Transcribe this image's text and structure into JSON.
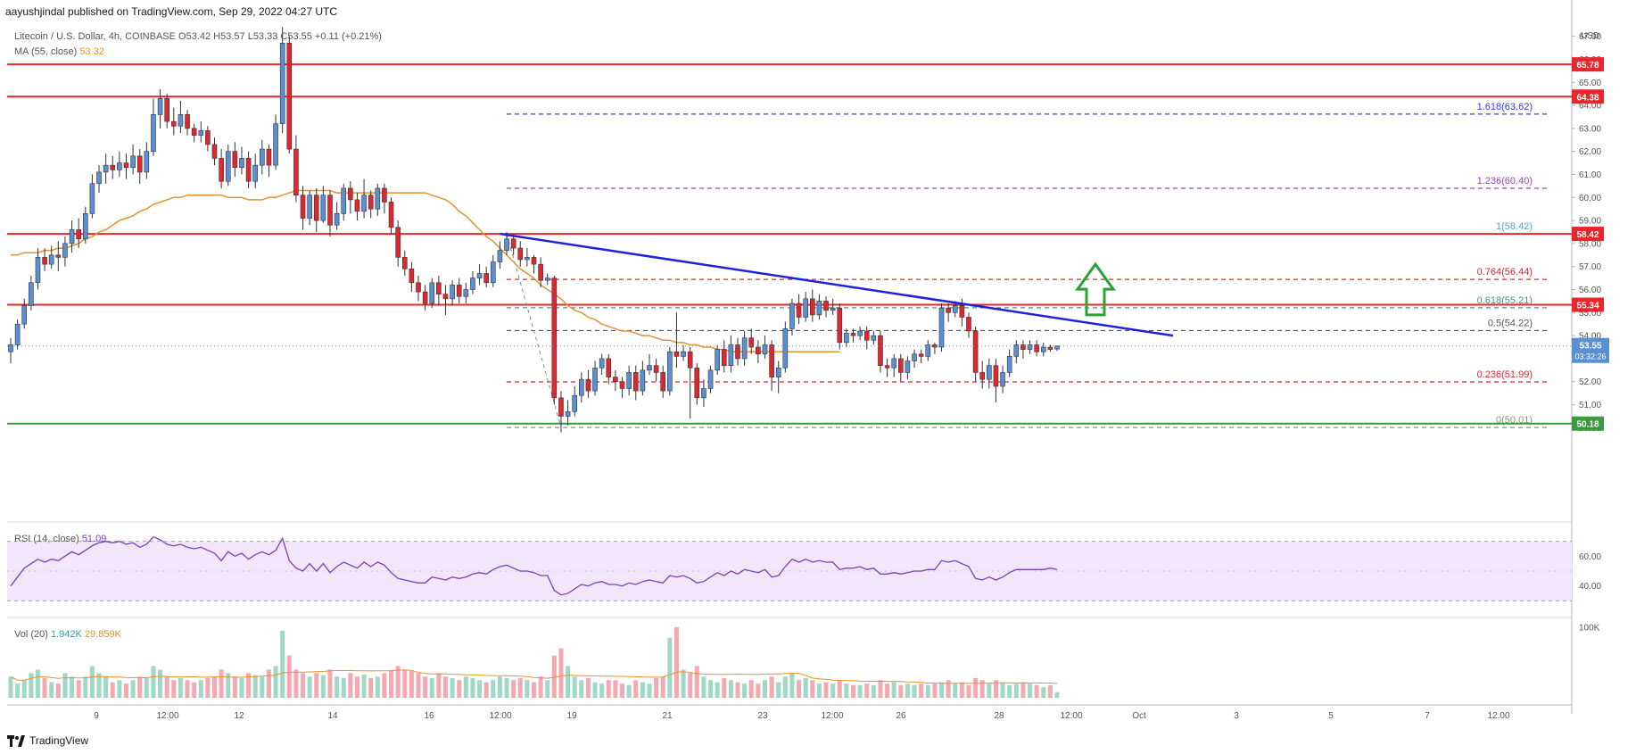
{
  "header": {
    "publisher": "aayushjindal published on TradingView.com, Sep 29, 2022 04:27 UTC",
    "symbol": "Litecoin / U.S. Dollar, 4h, COINBASE",
    "ohlc": "O53.42 H53.57 L53.33 C53.55 +0.11 (+0.21%)",
    "ma_label": "MA (55, close)",
    "ma_value": "53.32"
  },
  "rsi": {
    "label": "RSI (14, close)",
    "value": "51.09"
  },
  "vol": {
    "label": "Vol (20)",
    "value1": "1.942K",
    "value2": "29.859K"
  },
  "footer": {
    "brand": "TradingView"
  },
  "colors": {
    "up": "#5b8fd4",
    "down": "#e0262f",
    "ma": "#e8912d",
    "trendline": "#1f22d9",
    "hline": "#e8262c",
    "support": "#3a9a3e",
    "arrow": "#2aa332",
    "rsi_line": "#7e3fb8",
    "rsi_fill": "#f1e6fa"
  },
  "chart_data": {
    "type": "candlestick",
    "title": "Litecoin / U.S. Dollar, 4h, COINBASE",
    "y_axis_label": "USD",
    "ylim": [
      49.2,
      67.8
    ],
    "price_ticks": [
      "67.00",
      "66.00",
      "65.00",
      "64.00",
      "63.00",
      "62.00",
      "61.00",
      "60.00",
      "59.00",
      "58.00",
      "57.00",
      "56.00",
      "55.00",
      "54.00",
      "53.00",
      "52.00",
      "51.00",
      "50.00"
    ],
    "x_ticks": [
      "9",
      "12:00",
      "12",
      "14",
      "16",
      "12:00",
      "19",
      "21",
      "23",
      "12:00",
      "26",
      "28",
      "12:00",
      "Oct",
      "3",
      "5",
      "7",
      "12:00"
    ],
    "last_price": "53.55",
    "countdown": "03:32:26",
    "horizontal_levels": [
      {
        "value": 65.78,
        "label": "65.78"
      },
      {
        "value": 64.38,
        "label": "64.38"
      },
      {
        "value": 58.42,
        "label": "58.42"
      },
      {
        "value": 55.34,
        "label": "55.34"
      },
      {
        "value": 50.18,
        "label": "50.18"
      }
    ],
    "fibonacci": [
      {
        "value": 63.62,
        "label": "1.618(63.62)"
      },
      {
        "value": 60.4,
        "label": "1.236(60.40)"
      },
      {
        "value": 58.42,
        "label": "1(58.42)"
      },
      {
        "value": 56.44,
        "label": "0.764(56.44)"
      },
      {
        "value": 55.21,
        "label": "0.618(55.21)"
      },
      {
        "value": 54.22,
        "label": "0.5(54.22)"
      },
      {
        "value": 51.99,
        "label": "0.236(51.99)"
      },
      {
        "value": 50.01,
        "label": "0(50.01)"
      }
    ],
    "trendline": {
      "from": 58.42,
      "to": 54.0
    },
    "moving_average_55": [
      57.5,
      57.5,
      57.6,
      57.6,
      57.6,
      57.7,
      57.7,
      57.8,
      57.8,
      57.9,
      58.0,
      58.2,
      58.3,
      58.5,
      58.6,
      58.8,
      59.0,
      59.1,
      59.2,
      59.4,
      59.5,
      59.7,
      59.8,
      59.9,
      60.0,
      60.0,
      60.1,
      60.1,
      60.1,
      60.1,
      60.1,
      60.1,
      60.0,
      60.0,
      60.0,
      59.9,
      59.9,
      59.9,
      60.0,
      60.0,
      60.1,
      60.2,
      60.3,
      60.3,
      60.3,
      60.3,
      60.3,
      60.3,
      60.2,
      60.2,
      60.2,
      60.2,
      60.2,
      60.2,
      60.2,
      60.2,
      60.2,
      60.2,
      60.2,
      60.2,
      60.2,
      60.2,
      60.1,
      60.0,
      59.9,
      59.7,
      59.4,
      59.2,
      58.9,
      58.6,
      58.3,
      58.1,
      57.8,
      57.5,
      57.2,
      56.9,
      56.7,
      56.5,
      56.2,
      56.0,
      55.8,
      55.6,
      55.3,
      55.1,
      55.0,
      54.8,
      54.7,
      54.5,
      54.4,
      54.3,
      54.2,
      54.2,
      54.1,
      54.0,
      54.0,
      53.9,
      53.8,
      53.8,
      53.7,
      53.7,
      53.6,
      53.6,
      53.5,
      53.5,
      53.4,
      53.4,
      53.3,
      53.3,
      53.3,
      53.3,
      53.3,
      53.3,
      53.3,
      53.3,
      53.3,
      53.3,
      53.3,
      53.3,
      53.3,
      53.3,
      53.3,
      53.3,
      53.3
    ],
    "candles": [
      [
        53.3,
        53.6,
        52.8,
        53.9
      ],
      [
        53.6,
        54.5,
        53.4,
        54.7
      ],
      [
        54.5,
        55.3,
        54.3,
        55.6
      ],
      [
        55.3,
        56.3,
        55.1,
        56.6
      ],
      [
        56.3,
        57.4,
        56.0,
        57.8
      ],
      [
        57.4,
        57.1,
        56.8,
        57.8
      ],
      [
        57.1,
        57.5,
        56.9,
        57.9
      ],
      [
        57.5,
        57.4,
        56.8,
        58.1
      ],
      [
        57.4,
        58.0,
        57.0,
        58.3
      ],
      [
        58.0,
        58.6,
        57.6,
        59.0
      ],
      [
        58.6,
        58.2,
        57.8,
        59.1
      ],
      [
        58.2,
        59.3,
        58.0,
        59.6
      ],
      [
        59.3,
        60.6,
        59.1,
        61.0
      ],
      [
        60.6,
        61.1,
        60.2,
        61.4
      ],
      [
        61.1,
        61.4,
        60.6,
        61.9
      ],
      [
        61.4,
        61.2,
        60.8,
        61.8
      ],
      [
        61.2,
        61.5,
        60.9,
        62.0
      ],
      [
        61.5,
        61.3,
        60.8,
        61.9
      ],
      [
        61.3,
        61.8,
        61.0,
        62.3
      ],
      [
        61.8,
        61.1,
        60.6,
        62.1
      ],
      [
        61.1,
        62.0,
        60.8,
        62.4
      ],
      [
        62.0,
        63.6,
        61.8,
        64.3
      ],
      [
        63.6,
        64.3,
        63.0,
        64.7
      ],
      [
        64.3,
        63.3,
        63.0,
        64.5
      ],
      [
        63.3,
        63.1,
        62.7,
        63.9
      ],
      [
        63.1,
        63.6,
        62.8,
        64.2
      ],
      [
        63.6,
        63.0,
        62.7,
        63.8
      ],
      [
        63.0,
        62.7,
        62.4,
        63.2
      ],
      [
        62.7,
        62.9,
        62.4,
        63.3
      ],
      [
        62.9,
        62.3,
        62.0,
        63.1
      ],
      [
        62.3,
        61.7,
        61.4,
        62.6
      ],
      [
        61.7,
        60.7,
        60.4,
        62.1
      ],
      [
        60.7,
        62.0,
        60.5,
        62.3
      ],
      [
        62.0,
        61.3,
        60.9,
        62.4
      ],
      [
        61.3,
        61.7,
        61.0,
        62.2
      ],
      [
        61.7,
        60.7,
        60.4,
        62.0
      ],
      [
        60.7,
        61.4,
        60.4,
        61.9
      ],
      [
        61.4,
        62.1,
        61.0,
        62.5
      ],
      [
        62.1,
        61.4,
        60.9,
        62.3
      ],
      [
        61.4,
        63.2,
        61.2,
        63.6
      ],
      [
        63.2,
        66.7,
        62.8,
        67.4
      ],
      [
        66.7,
        62.1,
        61.9,
        67.0
      ],
      [
        62.1,
        60.1,
        59.8,
        62.7
      ],
      [
        60.1,
        59.1,
        58.6,
        60.5
      ],
      [
        59.1,
        60.1,
        58.8,
        60.3
      ],
      [
        60.1,
        59.0,
        58.5,
        60.4
      ],
      [
        59.0,
        60.1,
        58.9,
        60.5
      ],
      [
        60.1,
        58.8,
        58.3,
        60.3
      ],
      [
        58.8,
        59.3,
        58.6,
        59.8
      ],
      [
        59.3,
        60.4,
        59.0,
        60.6
      ],
      [
        60.4,
        59.9,
        59.3,
        60.7
      ],
      [
        59.9,
        59.4,
        59.0,
        60.2
      ],
      [
        59.4,
        60.1,
        59.1,
        60.8
      ],
      [
        60.1,
        59.5,
        59.1,
        60.3
      ],
      [
        59.5,
        60.4,
        59.2,
        60.6
      ],
      [
        60.4,
        59.8,
        59.3,
        60.6
      ],
      [
        59.8,
        58.7,
        58.4,
        60.0
      ],
      [
        58.7,
        57.4,
        57.0,
        59.0
      ],
      [
        57.4,
        56.9,
        56.6,
        57.7
      ],
      [
        56.9,
        56.3,
        55.9,
        57.2
      ],
      [
        56.3,
        55.9,
        55.5,
        56.6
      ],
      [
        55.9,
        55.4,
        55.1,
        56.2
      ],
      [
        55.4,
        56.3,
        55.2,
        56.5
      ],
      [
        56.3,
        55.8,
        55.3,
        56.6
      ],
      [
        55.8,
        55.6,
        54.9,
        56.2
      ],
      [
        55.6,
        56.2,
        55.3,
        56.4
      ],
      [
        56.2,
        55.7,
        55.4,
        56.5
      ],
      [
        55.7,
        56.0,
        55.4,
        56.3
      ],
      [
        56.0,
        56.5,
        55.8,
        56.8
      ],
      [
        56.5,
        56.7,
        56.2,
        57.1
      ],
      [
        56.7,
        56.3,
        56.1,
        57.0
      ],
      [
        56.3,
        57.2,
        56.1,
        57.5
      ],
      [
        57.2,
        57.7,
        56.9,
        58.1
      ],
      [
        57.7,
        58.2,
        57.5,
        58.5
      ],
      [
        58.2,
        57.8,
        57.5,
        58.4
      ],
      [
        57.8,
        57.3,
        57.0,
        58.1
      ],
      [
        57.3,
        57.4,
        57.0,
        57.8
      ],
      [
        57.4,
        57.1,
        56.7,
        57.5
      ],
      [
        57.1,
        56.4,
        56.1,
        57.4
      ],
      [
        56.4,
        56.5,
        56.2,
        56.7
      ],
      [
        56.5,
        51.3,
        51.0,
        56.6
      ],
      [
        51.3,
        50.5,
        49.8,
        51.6
      ],
      [
        50.5,
        50.7,
        50.1,
        51.2
      ],
      [
        50.7,
        51.4,
        50.5,
        51.8
      ],
      [
        51.4,
        52.1,
        51.1,
        52.4
      ],
      [
        52.1,
        51.6,
        51.3,
        52.5
      ],
      [
        51.6,
        52.6,
        51.4,
        52.9
      ],
      [
        52.6,
        53.0,
        52.3,
        53.2
      ],
      [
        53.0,
        52.2,
        51.9,
        53.2
      ],
      [
        52.2,
        52.0,
        51.6,
        52.5
      ],
      [
        52.0,
        51.7,
        51.3,
        52.2
      ],
      [
        51.7,
        52.4,
        51.4,
        52.7
      ],
      [
        52.4,
        51.6,
        51.2,
        52.7
      ],
      [
        51.6,
        52.5,
        51.4,
        52.9
      ],
      [
        52.5,
        52.7,
        52.3,
        53.2
      ],
      [
        52.7,
        52.4,
        52.0,
        53.0
      ],
      [
        52.4,
        51.6,
        51.3,
        52.7
      ],
      [
        51.6,
        53.3,
        51.4,
        53.5
      ],
      [
        53.3,
        53.1,
        52.6,
        55.0
      ],
      [
        53.1,
        53.3,
        52.9,
        53.6
      ],
      [
        53.3,
        52.6,
        50.4,
        53.5
      ],
      [
        52.6,
        51.3,
        51.0,
        52.8
      ],
      [
        51.3,
        51.7,
        50.9,
        52.1
      ],
      [
        51.7,
        52.5,
        51.5,
        52.7
      ],
      [
        52.5,
        53.4,
        52.3,
        53.6
      ],
      [
        53.4,
        52.7,
        52.4,
        53.8
      ],
      [
        52.7,
        53.6,
        52.4,
        54.0
      ],
      [
        53.6,
        53.0,
        52.7,
        53.9
      ],
      [
        53.0,
        53.9,
        52.7,
        54.2
      ],
      [
        53.9,
        53.5,
        53.2,
        54.3
      ],
      [
        53.5,
        53.2,
        52.8,
        53.8
      ],
      [
        53.2,
        53.6,
        53.0,
        54.0
      ],
      [
        53.6,
        52.2,
        51.6,
        53.8
      ],
      [
        52.2,
        52.6,
        51.5,
        52.9
      ],
      [
        52.6,
        54.3,
        52.4,
        54.6
      ],
      [
        54.3,
        55.4,
        54.0,
        55.6
      ],
      [
        55.4,
        54.8,
        54.5,
        55.8
      ],
      [
        54.8,
        55.6,
        54.6,
        55.9
      ],
      [
        55.6,
        54.9,
        54.6,
        56.0
      ],
      [
        54.9,
        55.5,
        54.7,
        55.8
      ],
      [
        55.5,
        55.1,
        54.8,
        55.7
      ],
      [
        55.1,
        55.2,
        54.9,
        55.6
      ],
      [
        55.2,
        53.7,
        53.4,
        55.4
      ],
      [
        53.7,
        54.1,
        53.5,
        54.3
      ],
      [
        54.1,
        54.0,
        53.7,
        54.3
      ],
      [
        54.0,
        54.2,
        53.8,
        54.4
      ],
      [
        54.2,
        53.8,
        53.4,
        54.4
      ],
      [
        53.8,
        54.0,
        53.6,
        54.2
      ],
      [
        54.0,
        52.7,
        52.4,
        54.2
      ],
      [
        52.7,
        52.6,
        52.2,
        53.0
      ],
      [
        52.6,
        53.0,
        52.2,
        53.2
      ],
      [
        53.0,
        52.4,
        52.0,
        53.2
      ],
      [
        52.4,
        52.9,
        52.1,
        53.1
      ],
      [
        52.9,
        53.2,
        52.6,
        53.4
      ],
      [
        53.2,
        53.1,
        52.8,
        53.4
      ],
      [
        53.1,
        53.6,
        52.9,
        53.8
      ],
      [
        53.6,
        53.5,
        53.2,
        53.7
      ],
      [
        53.5,
        55.2,
        53.3,
        55.4
      ],
      [
        55.2,
        55.0,
        54.6,
        55.4
      ],
      [
        55.0,
        55.3,
        54.8,
        55.5
      ],
      [
        55.3,
        54.8,
        54.4,
        55.6
      ],
      [
        54.8,
        54.2,
        53.9,
        55.0
      ],
      [
        54.2,
        52.4,
        52.0,
        54.4
      ],
      [
        52.4,
        52.1,
        51.7,
        52.9
      ],
      [
        52.1,
        52.7,
        51.7,
        53.0
      ],
      [
        52.7,
        51.8,
        51.1,
        53.0
      ],
      [
        51.8,
        52.4,
        51.5,
        52.7
      ],
      [
        52.4,
        53.1,
        52.2,
        53.4
      ],
      [
        53.1,
        53.6,
        52.8,
        53.8
      ],
      [
        53.6,
        53.4,
        53.0,
        53.8
      ],
      [
        53.4,
        53.6,
        53.2,
        53.8
      ],
      [
        53.6,
        53.3,
        53.1,
        53.8
      ],
      [
        53.3,
        53.5,
        53.1,
        53.7
      ],
      [
        53.5,
        53.4,
        53.3,
        53.6
      ],
      [
        53.42,
        53.55,
        53.33,
        53.57
      ]
    ],
    "rsi_series": [
      40,
      46,
      52,
      55,
      58,
      56,
      58,
      57,
      60,
      63,
      61,
      64,
      67,
      69,
      70,
      69,
      70,
      68,
      69,
      66,
      68,
      73,
      71,
      68,
      67,
      68,
      66,
      65,
      66,
      64,
      62,
      57,
      63,
      60,
      62,
      58,
      61,
      63,
      61,
      64,
      72,
      57,
      52,
      50,
      55,
      50,
      55,
      49,
      53,
      56,
      54,
      52,
      56,
      53,
      56,
      54,
      49,
      45,
      44,
      43,
      42,
      42,
      46,
      45,
      44,
      46,
      45,
      46,
      48,
      49,
      48,
      51,
      53,
      54,
      52,
      50,
      50,
      49,
      47,
      47,
      37,
      34,
      35,
      38,
      41,
      40,
      42,
      43,
      41,
      41,
      40,
      42,
      41,
      43,
      44,
      43,
      42,
      47,
      46,
      47,
      45,
      42,
      43,
      46,
      49,
      47,
      50,
      48,
      51,
      50,
      49,
      51,
      46,
      47,
      53,
      58,
      56,
      58,
      56,
      57,
      56,
      56,
      51,
      52,
      52,
      53,
      51,
      52,
      48,
      48,
      49,
      48,
      49,
      50,
      50,
      51,
      51,
      57,
      56,
      57,
      55,
      53,
      45,
      44,
      46,
      44,
      46,
      49,
      51,
      51,
      51,
      51,
      51,
      52,
      51
    ],
    "volume": [
      30,
      20,
      25,
      35,
      40,
      28,
      22,
      20,
      35,
      30,
      25,
      30,
      45,
      35,
      30,
      22,
      25,
      20,
      25,
      30,
      28,
      45,
      40,
      30,
      25,
      28,
      25,
      22,
      25,
      28,
      30,
      40,
      35,
      30,
      28,
      35,
      32,
      30,
      40,
      45,
      95,
      60,
      40,
      35,
      30,
      35,
      32,
      40,
      30,
      28,
      35,
      30,
      33,
      28,
      30,
      35,
      38,
      45,
      40,
      38,
      35,
      30,
      28,
      35,
      30,
      28,
      25,
      30,
      28,
      25,
      22,
      25,
      30,
      28,
      25,
      28,
      25,
      22,
      30,
      25,
      60,
      70,
      45,
      30,
      25,
      28,
      22,
      20,
      25,
      25,
      20,
      18,
      25,
      22,
      20,
      28,
      30,
      85,
      100,
      40,
      35,
      45,
      30,
      25,
      22,
      28,
      25,
      22,
      20,
      25,
      20,
      25,
      30,
      22,
      30,
      35,
      25,
      28,
      25,
      20,
      22,
      20,
      25,
      20,
      18,
      18,
      20,
      18,
      25,
      20,
      22,
      18,
      20,
      18,
      20,
      18,
      20,
      22,
      25,
      20,
      22,
      18,
      28,
      25,
      20,
      25,
      22,
      18,
      20,
      22,
      20,
      18,
      15,
      18,
      8
    ],
    "rsi_band": [
      30,
      70
    ],
    "rsi_ticks": [
      "60.00",
      "40.00"
    ],
    "vol_ticks": [
      "100K"
    ]
  }
}
